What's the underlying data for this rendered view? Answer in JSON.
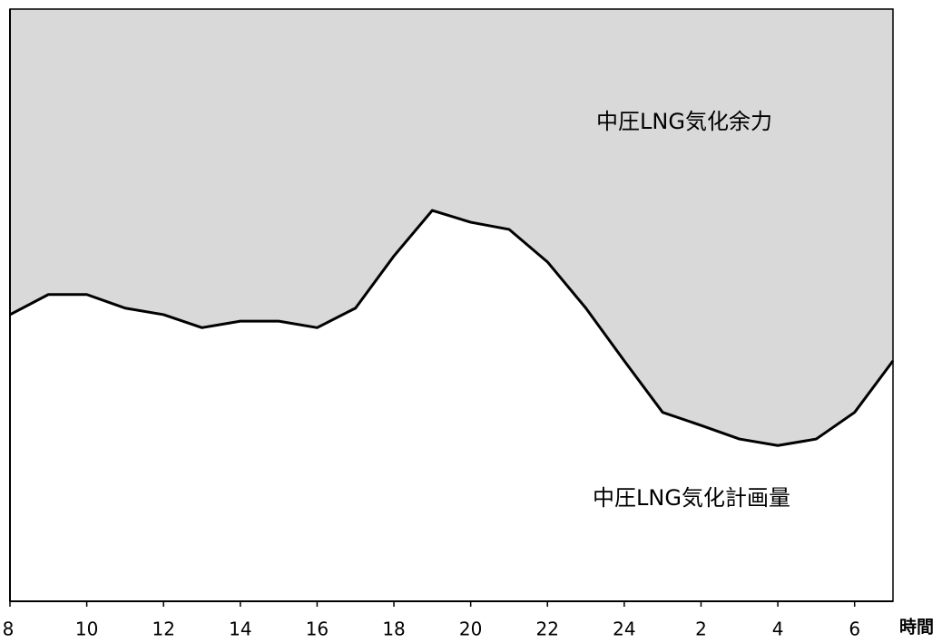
{
  "chart_data": {
    "type": "area",
    "x_label": "時間",
    "categories": [
      "8",
      null,
      "10",
      null,
      "12",
      null,
      "14",
      null,
      "16",
      null,
      "18",
      null,
      "20",
      null,
      "22",
      null,
      "24",
      null,
      "2",
      null,
      "4",
      null,
      "6",
      null
    ],
    "values": [
      48.4,
      51.8,
      51.8,
      49.5,
      48.4,
      46.2,
      47.3,
      47.3,
      46.2,
      49.5,
      58.3,
      66.0,
      64.0,
      62.8,
      57.3,
      49.5,
      40.6,
      31.9,
      29.7,
      27.4,
      26.3,
      27.4,
      31.9,
      40.6
    ],
    "ylim": [
      0,
      100
    ],
    "line_color": "#000000",
    "above_color": "#d9d9d9",
    "below_color": "#ffffff",
    "annotations": [
      "中圧LNG気化余力",
      "中圧LNG気化計画量"
    ]
  }
}
